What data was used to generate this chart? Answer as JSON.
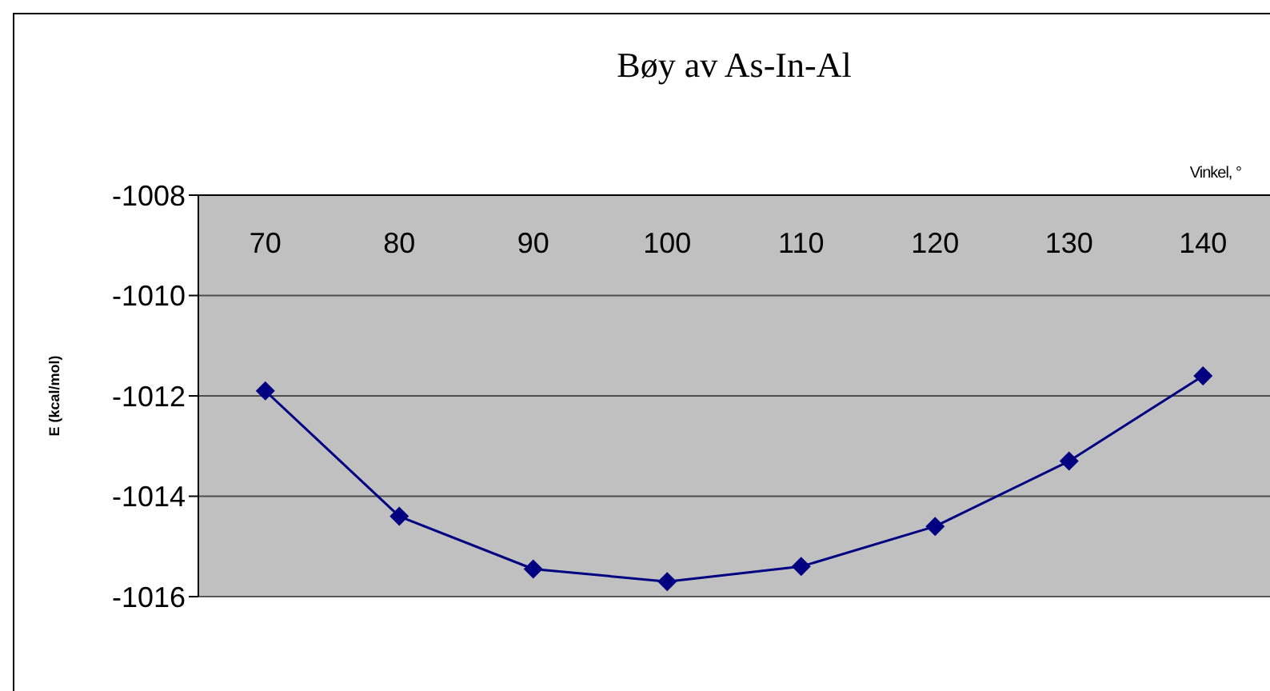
{
  "chart_data": {
    "type": "line",
    "title": "Bøy av As-In-Al",
    "xlabel": "Vinkel, °",
    "ylabel": "E (kcal/mol)",
    "categories": [
      "70",
      "80",
      "90",
      "100",
      "110",
      "120",
      "130",
      "140"
    ],
    "series": [
      {
        "color": "#000080",
        "values": [
          -1011.9,
          -1014.4,
          -1015.45,
          -1015.7,
          -1015.4,
          -1014.6,
          -1013.3,
          -1011.6
        ]
      }
    ],
    "ylim": [
      -1016,
      -1008
    ],
    "yticks": [
      -1016,
      -1014,
      -1012,
      -1010,
      -1008
    ],
    "grid": "y",
    "marker": "diamond",
    "legend": false
  }
}
